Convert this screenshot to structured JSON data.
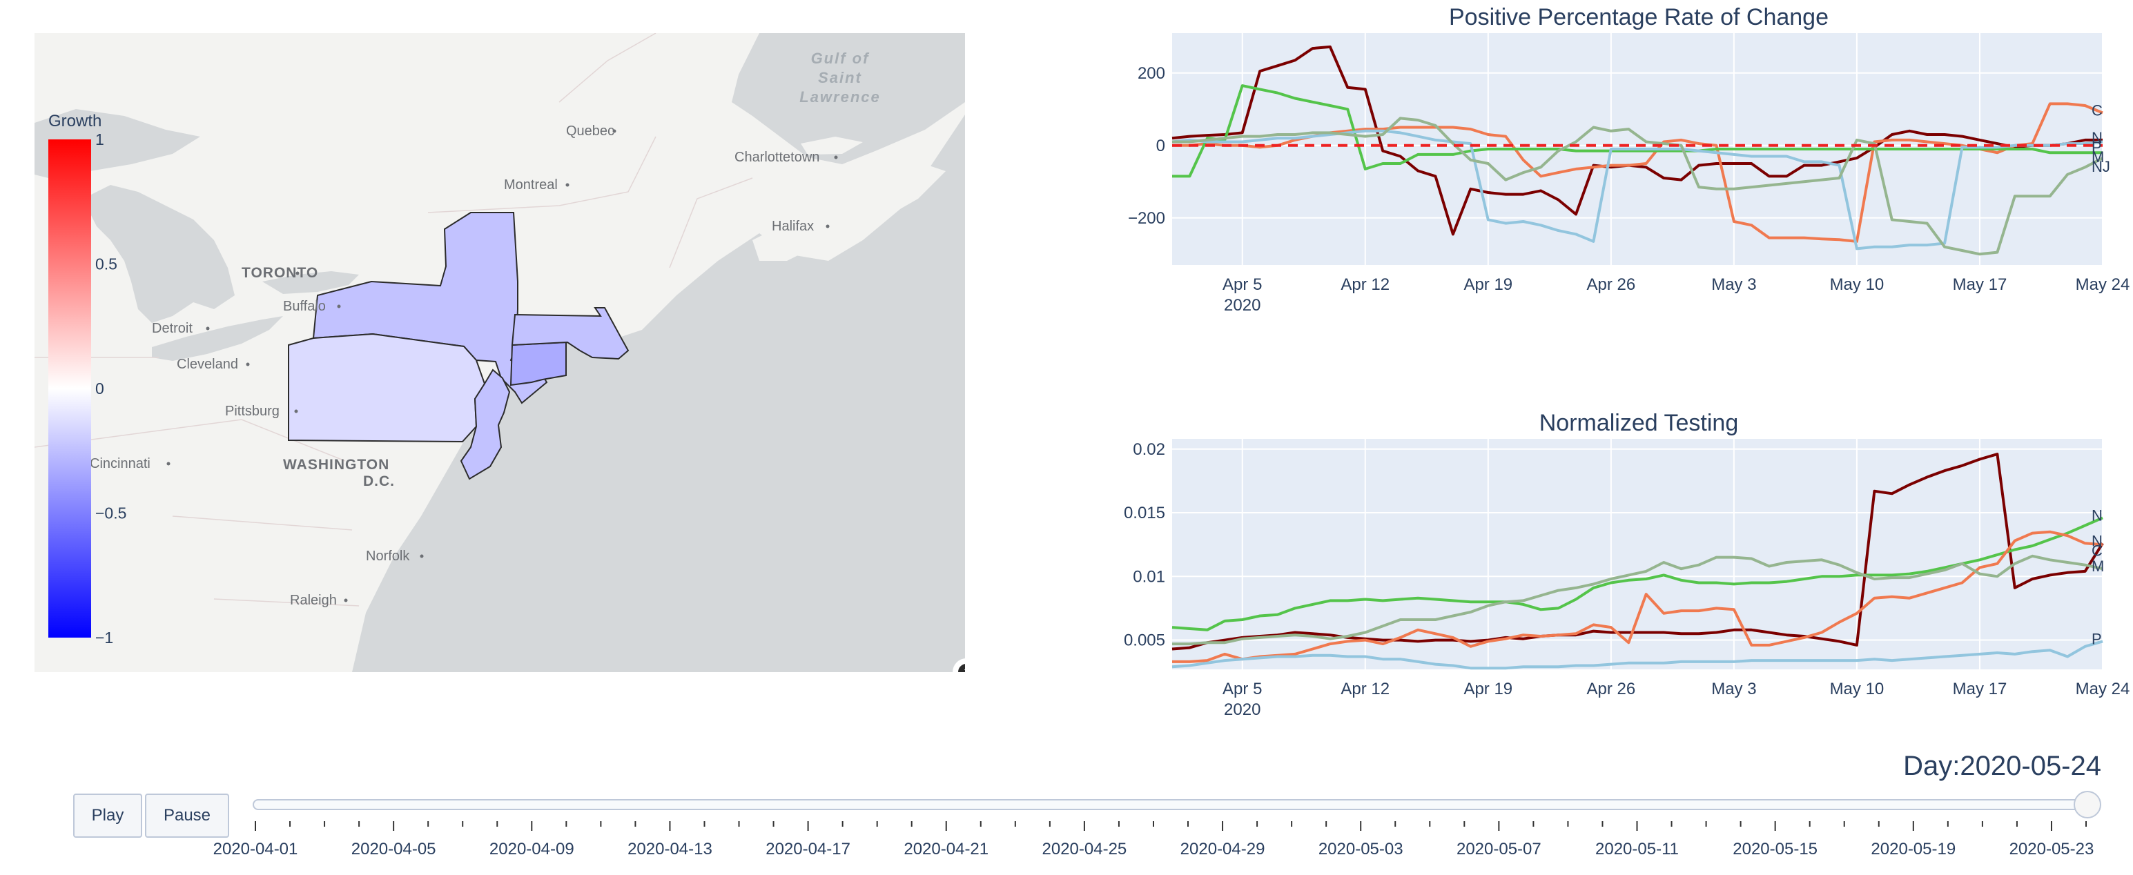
{
  "map": {
    "colorbar": {
      "title": "Growth",
      "ticks": [
        "1",
        "0.5",
        "0",
        "−0.5",
        "−1"
      ],
      "tick_values": [
        1,
        0.5,
        0,
        -0.5,
        -1
      ],
      "colors": [
        "#ff0000",
        "#ffffff",
        "#0000ff"
      ]
    },
    "states": [
      {
        "code": "NY",
        "growth": -0.24
      },
      {
        "code": "PA",
        "growth": -0.14
      },
      {
        "code": "NJ",
        "growth": -0.24
      },
      {
        "code": "CT",
        "growth": -0.33
      },
      {
        "code": "MA",
        "growth": -0.24
      }
    ],
    "place_labels": [
      "Quebec",
      "Montreal",
      "Charlottetown",
      "Halifax",
      "TORONTO",
      "Buffalo",
      "Detroit",
      "Cleveland",
      "Pittsburg",
      "Cincinnati",
      "WASHINGTON",
      "D.C.",
      "Norfolk",
      "Raleigh"
    ],
    "water_labels": [
      "Gulf of",
      "Saint",
      "Lawrence"
    ],
    "info_icon": "info-icon"
  },
  "chart_data": [
    {
      "type": "line",
      "title": "Positive Percentage Rate of Change",
      "x": [
        "2020-04-01",
        "2020-04-02",
        "2020-04-03",
        "2020-04-04",
        "2020-04-05",
        "2020-04-06",
        "2020-04-07",
        "2020-04-08",
        "2020-04-09",
        "2020-04-10",
        "2020-04-11",
        "2020-04-12",
        "2020-04-13",
        "2020-04-14",
        "2020-04-15",
        "2020-04-16",
        "2020-04-17",
        "2020-04-18",
        "2020-04-19",
        "2020-04-20",
        "2020-04-21",
        "2020-04-22",
        "2020-04-23",
        "2020-04-24",
        "2020-04-25",
        "2020-04-26",
        "2020-04-27",
        "2020-04-28",
        "2020-04-29",
        "2020-04-30",
        "2020-05-01",
        "2020-05-02",
        "2020-05-03",
        "2020-05-04",
        "2020-05-05",
        "2020-05-06",
        "2020-05-07",
        "2020-05-08",
        "2020-05-09",
        "2020-05-10",
        "2020-05-11",
        "2020-05-12",
        "2020-05-13",
        "2020-05-14",
        "2020-05-15",
        "2020-05-16",
        "2020-05-17",
        "2020-05-18",
        "2020-05-19",
        "2020-05-20",
        "2020-05-21",
        "2020-05-22",
        "2020-05-23",
        "2020-05-24"
      ],
      "xticks": [
        "Apr 5",
        "Apr 12",
        "Apr 19",
        "Apr 26",
        "May 3",
        "May 10",
        "May 17",
        "May 24"
      ],
      "xtick_dates": [
        "2020-04-05",
        "2020-04-12",
        "2020-04-19",
        "2020-04-26",
        "2020-05-03",
        "2020-05-10",
        "2020-05-17",
        "2020-05-24"
      ],
      "xtick_year": "2020",
      "yticks": [
        "200",
        "0",
        "−200"
      ],
      "ytick_values": [
        200,
        0,
        -200
      ],
      "ylim": [
        -330,
        310
      ],
      "reference_line": 0,
      "grid": true,
      "series": [
        {
          "label": "N",
          "color": "#7b0000",
          "values": [
            20,
            25,
            28,
            30,
            35,
            205,
            220,
            235,
            268,
            272,
            160,
            155,
            -15,
            -30,
            -70,
            -85,
            -245,
            -120,
            -130,
            -135,
            -135,
            -125,
            -150,
            -190,
            -55,
            -60,
            -55,
            -60,
            -90,
            -95,
            -55,
            -50,
            -50,
            -50,
            -85,
            -85,
            -55,
            -55,
            -45,
            -35,
            -5,
            30,
            40,
            30,
            30,
            25,
            15,
            5,
            -5,
            0,
            0,
            5,
            15,
            15
          ]
        },
        {
          "label": "C",
          "color": "#f0794f",
          "values": [
            0,
            0,
            5,
            0,
            0,
            -5,
            0,
            15,
            25,
            35,
            40,
            45,
            45,
            50,
            50,
            50,
            50,
            45,
            30,
            25,
            -40,
            -85,
            -75,
            -65,
            -60,
            -55,
            -55,
            -50,
            10,
            15,
            5,
            0,
            -210,
            -220,
            -255,
            -255,
            -255,
            -258,
            -260,
            -265,
            10,
            15,
            15,
            10,
            5,
            0,
            -10,
            -20,
            0,
            5,
            115,
            115,
            110,
            90
          ]
        },
        {
          "label": "M",
          "color": "#54c44a",
          "values": [
            -85,
            -85,
            20,
            15,
            165,
            155,
            145,
            130,
            120,
            110,
            100,
            -65,
            -50,
            -50,
            -25,
            -25,
            -25,
            -15,
            -10,
            -10,
            -10,
            -10,
            -10,
            -15,
            -15,
            -15,
            -15,
            -15,
            -15,
            -15,
            -15,
            -10,
            -10,
            -10,
            -10,
            -10,
            -10,
            -10,
            -10,
            -10,
            -10,
            -10,
            -10,
            -10,
            -10,
            -10,
            -10,
            -10,
            -10,
            -10,
            -20,
            -20,
            -20,
            -20
          ]
        },
        {
          "label": "P",
          "color": "#92c5de",
          "values": [
            10,
            15,
            10,
            10,
            10,
            15,
            20,
            20,
            25,
            30,
            35,
            40,
            40,
            35,
            25,
            15,
            10,
            5,
            -205,
            -215,
            -210,
            -220,
            -235,
            -245,
            -265,
            -10,
            -10,
            -10,
            -10,
            -10,
            -15,
            -20,
            -25,
            -30,
            -30,
            -30,
            -45,
            -45,
            -55,
            -285,
            -280,
            -280,
            -275,
            -275,
            -270,
            -5,
            -5,
            -5,
            0,
            0,
            0,
            5,
            5,
            10
          ]
        },
        {
          "label": "NJ",
          "color": "#95b58f",
          "values": [
            10,
            10,
            15,
            20,
            25,
            25,
            30,
            30,
            35,
            35,
            30,
            25,
            30,
            75,
            70,
            55,
            5,
            -40,
            -50,
            -95,
            -75,
            -60,
            -15,
            10,
            50,
            40,
            45,
            10,
            5,
            0,
            -115,
            -120,
            -120,
            -115,
            -110,
            -105,
            -100,
            -95,
            -90,
            15,
            5,
            -205,
            -210,
            -215,
            -280,
            -290,
            -300,
            -295,
            -140,
            -140,
            -140,
            -80,
            -60,
            -35
          ]
        }
      ]
    },
    {
      "type": "line",
      "title": "Normalized Testing",
      "x": [
        "2020-04-01",
        "2020-04-02",
        "2020-04-03",
        "2020-04-04",
        "2020-04-05",
        "2020-04-06",
        "2020-04-07",
        "2020-04-08",
        "2020-04-09",
        "2020-04-10",
        "2020-04-11",
        "2020-04-12",
        "2020-04-13",
        "2020-04-14",
        "2020-04-15",
        "2020-04-16",
        "2020-04-17",
        "2020-04-18",
        "2020-04-19",
        "2020-04-20",
        "2020-04-21",
        "2020-04-22",
        "2020-04-23",
        "2020-04-24",
        "2020-04-25",
        "2020-04-26",
        "2020-04-27",
        "2020-04-28",
        "2020-04-29",
        "2020-04-30",
        "2020-05-01",
        "2020-05-02",
        "2020-05-03",
        "2020-05-04",
        "2020-05-05",
        "2020-05-06",
        "2020-05-07",
        "2020-05-08",
        "2020-05-09",
        "2020-05-10",
        "2020-05-11",
        "2020-05-12",
        "2020-05-13",
        "2020-05-14",
        "2020-05-15",
        "2020-05-16",
        "2020-05-17",
        "2020-05-18",
        "2020-05-19",
        "2020-05-20",
        "2020-05-21",
        "2020-05-22",
        "2020-05-23",
        "2020-05-24"
      ],
      "xticks": [
        "Apr 5",
        "Apr 12",
        "Apr 19",
        "Apr 26",
        "May 3",
        "May 10",
        "May 17",
        "May 24"
      ],
      "xtick_dates": [
        "2020-04-05",
        "2020-04-12",
        "2020-04-19",
        "2020-04-26",
        "2020-05-03",
        "2020-05-10",
        "2020-05-17",
        "2020-05-24"
      ],
      "xtick_year": "2020",
      "yticks": [
        "0.02",
        "0.015",
        "0.01",
        "0.005"
      ],
      "ytick_values": [
        0.02,
        0.015,
        0.01,
        0.005
      ],
      "ylim": [
        0.0027,
        0.0208
      ],
      "grid": true,
      "series": [
        {
          "label": "N",
          "color": "#7b0000",
          "values": [
            0.0043,
            0.0044,
            0.0048,
            0.005,
            0.0052,
            0.0053,
            0.0054,
            0.0056,
            0.0055,
            0.0054,
            0.0052,
            0.0051,
            0.005,
            0.005,
            0.0049,
            0.005,
            0.005,
            0.0049,
            0.005,
            0.0052,
            0.0051,
            0.0053,
            0.0054,
            0.0054,
            0.0057,
            0.0056,
            0.0056,
            0.0056,
            0.0056,
            0.0055,
            0.0055,
            0.0056,
            0.0058,
            0.0058,
            0.0056,
            0.0054,
            0.0053,
            0.0051,
            0.0049,
            0.0046,
            0.0167,
            0.0165,
            0.0172,
            0.0178,
            0.0183,
            0.0187,
            0.0192,
            0.0196,
            0.0091,
            0.0098,
            0.0101,
            0.0103,
            0.0104,
            0.0126
          ]
        },
        {
          "label": "N",
          "color": "#54c44a",
          "values": [
            0.006,
            0.0059,
            0.0058,
            0.0065,
            0.0066,
            0.0069,
            0.007,
            0.0075,
            0.0078,
            0.0081,
            0.0081,
            0.0082,
            0.0081,
            0.0082,
            0.0083,
            0.0082,
            0.0081,
            0.008,
            0.008,
            0.008,
            0.0078,
            0.0074,
            0.0075,
            0.0082,
            0.0091,
            0.0095,
            0.0097,
            0.0098,
            0.0101,
            0.0097,
            0.0095,
            0.0095,
            0.0094,
            0.0095,
            0.0095,
            0.0096,
            0.0098,
            0.01,
            0.01,
            0.0101,
            0.0101,
            0.0101,
            0.0102,
            0.0104,
            0.0107,
            0.011,
            0.0113,
            0.0117,
            0.0121,
            0.0124,
            0.0129,
            0.0134,
            0.014,
            0.0146
          ]
        },
        {
          "label": "C",
          "color": "#f0794f",
          "values": [
            0.0033,
            0.0033,
            0.0034,
            0.0039,
            0.0035,
            0.0037,
            0.0038,
            0.0039,
            0.0043,
            0.0047,
            0.0049,
            0.005,
            0.0047,
            0.0052,
            0.0058,
            0.0055,
            0.0052,
            0.0045,
            0.0049,
            0.0051,
            0.0054,
            0.0053,
            0.0054,
            0.0055,
            0.0062,
            0.006,
            0.0048,
            0.0086,
            0.0071,
            0.0073,
            0.0073,
            0.0075,
            0.0074,
            0.0046,
            0.0046,
            0.0049,
            0.0052,
            0.0056,
            0.0064,
            0.0071,
            0.0083,
            0.0084,
            0.0083,
            0.0087,
            0.0091,
            0.0095,
            0.0107,
            0.011,
            0.0128,
            0.0134,
            0.0135,
            0.0132,
            0.0126,
            0.0125
          ]
        },
        {
          "label": "M",
          "color": "#95b58f",
          "values": [
            0.0047,
            0.0047,
            0.0048,
            0.0048,
            0.0051,
            0.0052,
            0.0053,
            0.0054,
            0.0053,
            0.0051,
            0.0053,
            0.0056,
            0.0061,
            0.0066,
            0.0066,
            0.0066,
            0.0069,
            0.0072,
            0.0077,
            0.008,
            0.0081,
            0.0085,
            0.0089,
            0.0091,
            0.0094,
            0.0098,
            0.0101,
            0.0104,
            0.0111,
            0.0106,
            0.0109,
            0.0115,
            0.0115,
            0.0114,
            0.0108,
            0.0111,
            0.0112,
            0.0113,
            0.0109,
            0.0103,
            0.0098,
            0.0099,
            0.0099,
            0.0102,
            0.0105,
            0.011,
            0.0102,
            0.01,
            0.011,
            0.0116,
            0.0113,
            0.0111,
            0.0109,
            0.0106
          ]
        },
        {
          "label": "P",
          "color": "#92c5de",
          "values": [
            0.0029,
            0.003,
            0.0032,
            0.0034,
            0.0035,
            0.0036,
            0.0037,
            0.0037,
            0.0038,
            0.0038,
            0.0037,
            0.0037,
            0.0035,
            0.0035,
            0.0033,
            0.0031,
            0.003,
            0.0028,
            0.0028,
            0.0028,
            0.0029,
            0.0029,
            0.0029,
            0.003,
            0.003,
            0.0031,
            0.0032,
            0.0032,
            0.0032,
            0.0033,
            0.0033,
            0.0033,
            0.0033,
            0.0034,
            0.0034,
            0.0034,
            0.0034,
            0.0034,
            0.0034,
            0.0034,
            0.0035,
            0.0034,
            0.0035,
            0.0036,
            0.0037,
            0.0038,
            0.0039,
            0.004,
            0.0039,
            0.0041,
            0.0042,
            0.0037,
            0.0045,
            0.0049
          ]
        }
      ]
    }
  ],
  "slider": {
    "current_label": "Day:2020-05-24",
    "min": "2020-04-01",
    "max": "2020-05-24",
    "value": "2020-05-24",
    "tick_labels": [
      "2020-04-01",
      "2020-04-05",
      "2020-04-09",
      "2020-04-13",
      "2020-04-17",
      "2020-04-21",
      "2020-04-25",
      "2020-04-29",
      "2020-05-03",
      "2020-05-07",
      "2020-05-11",
      "2020-05-15",
      "2020-05-19",
      "2020-05-23"
    ]
  },
  "buttons": {
    "play": "Play",
    "pause": "Pause"
  }
}
